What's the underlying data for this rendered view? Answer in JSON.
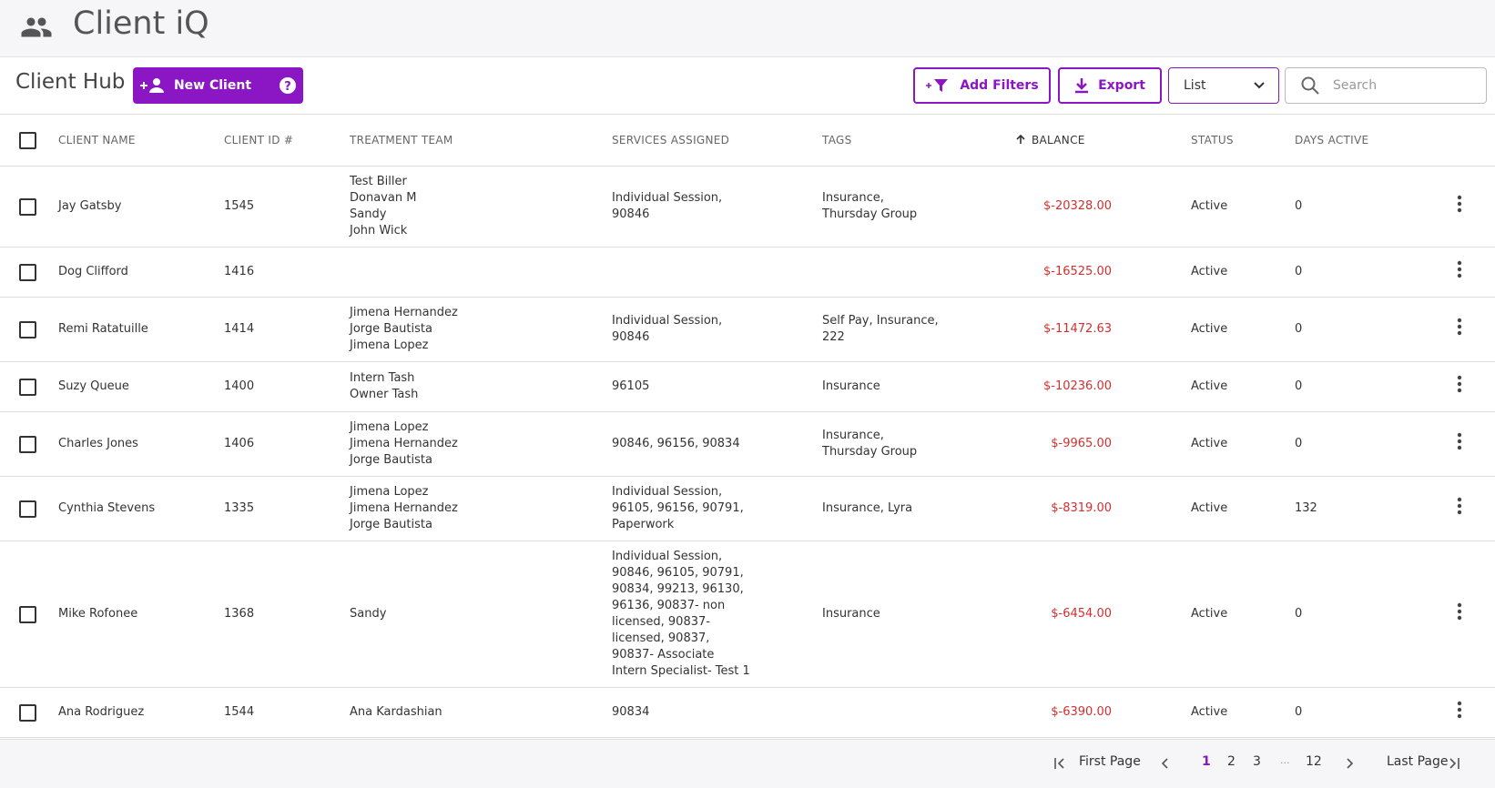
{
  "header": {
    "title": "Client iQ"
  },
  "toolbar": {
    "hub_title": "Client Hub",
    "new_client": "New Client",
    "add_filters": "Add Filters",
    "export": "Export",
    "view": "List",
    "search_placeholder": "Search"
  },
  "table": {
    "columns": [
      "CLIENT NAME",
      "CLIENT ID #",
      "TREATMENT TEAM",
      "SERVICES ASSIGNED",
      "TAGS",
      "BALANCE",
      "STATUS",
      "DAYS ACTIVE"
    ],
    "rows": [
      [
        "Jay Gatsby",
        "1545",
        [
          "Test Biller",
          "Donavan M",
          "Sandy",
          "John Wick"
        ],
        "Individual Session, 90846",
        "Insurance, Thursday Group",
        "$-20328.00",
        "Active",
        "0"
      ],
      [
        "Dog Clifford",
        "1416",
        [],
        "",
        "",
        "$-16525.00",
        "Active",
        "0"
      ],
      [
        "Remi Ratatuille",
        "1414",
        [
          "Jimena Hernandez",
          "Jorge Bautista",
          "Jimena Lopez"
        ],
        "Individual Session, 90846",
        "Self Pay, Insurance, 222",
        "$-11472.63",
        "Active",
        "0"
      ],
      [
        "Suzy Queue",
        "1400",
        [
          "Intern Tash",
          "Owner Tash"
        ],
        "96105",
        "Insurance",
        "$-10236.00",
        "Active",
        "0"
      ],
      [
        "Charles Jones",
        "1406",
        [
          "Jimena Lopez",
          "Jimena Hernandez",
          "Jorge Bautista"
        ],
        "90846, 96156, 90834",
        "Insurance, Thursday Group",
        "$-9965.00",
        "Active",
        "0"
      ],
      [
        "Cynthia Stevens",
        "1335",
        [
          "Jimena Lopez",
          "Jimena Hernandez",
          "Jorge Bautista"
        ],
        "Individual Session, 96105, 96156, 90791, Paperwork",
        "Insurance, Lyra",
        "$-8319.00",
        "Active",
        "132"
      ],
      [
        "Mike Rofonee",
        "1368",
        [
          "Sandy"
        ],
        "Individual Session, 90846, 96105, 90791, 90834, 99213, 96130, 96136, 90837- non licensed, 90837- licensed, 90837, 90837- Associate Intern Specialist- Test 1",
        "Insurance",
        "$-6454.00",
        "Active",
        "0"
      ],
      [
        "Ana Rodriguez",
        "1544",
        [
          "Ana Kardashian"
        ],
        "90834",
        "",
        "$-6390.00",
        "Active",
        "0"
      ]
    ]
  },
  "pagination": {
    "first": "First Page",
    "pages": [
      "1",
      "2",
      "3",
      "...",
      "12"
    ],
    "last": "Last Page"
  }
}
